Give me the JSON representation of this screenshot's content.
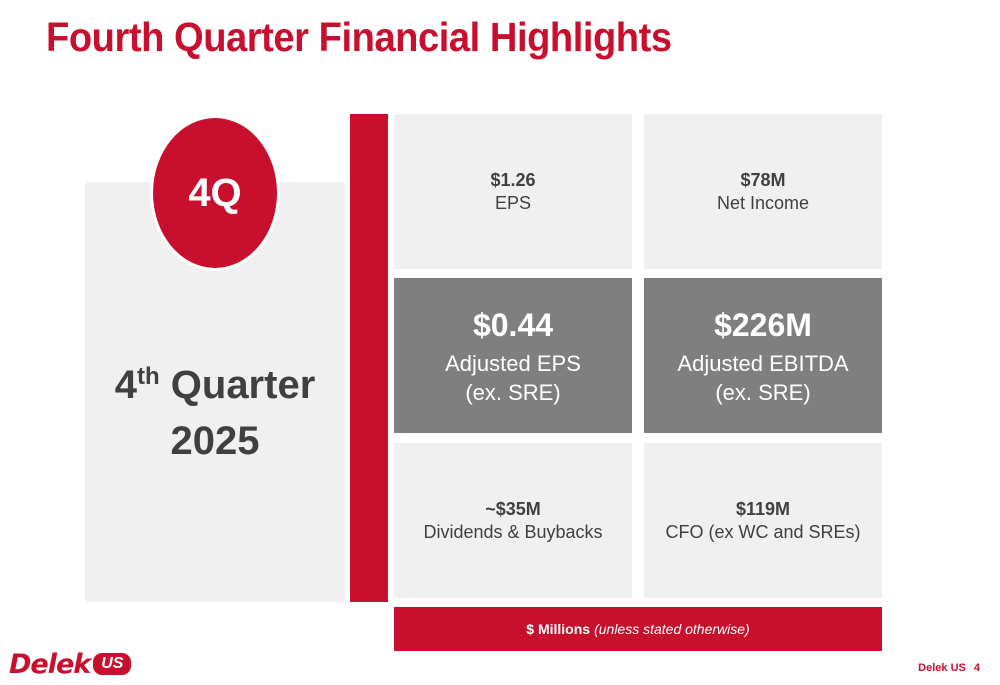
{
  "slide": {
    "title": "Fourth Quarter Financial Highlights"
  },
  "left": {
    "badge": "4Q",
    "ordinal_number": "4",
    "ordinal_suffix": "th",
    "quarter_word": "Quarter",
    "year": "2025"
  },
  "metrics": [
    {
      "value": "$1.26",
      "label": "EPS"
    },
    {
      "value": "$78M",
      "label": "Net Income"
    },
    {
      "value": "$0.44",
      "label_line1": "Adjusted EPS",
      "label_line2": "(ex. SRE)"
    },
    {
      "value": "$226M",
      "label_line1": "Adjusted EBITDA",
      "label_line2": "(ex. SRE)"
    },
    {
      "value": "~$35M",
      "label": "Dividends & Buybacks"
    },
    {
      "value": "$119M",
      "label": "CFO (ex WC and SREs)"
    }
  ],
  "footer_bar": {
    "bold_text": "$ Millions",
    "italic_text": "(unless stated otherwise)"
  },
  "logo": {
    "word": "Delek",
    "badge": "US"
  },
  "footer": {
    "company": "Delek US",
    "page_number": "4"
  },
  "colors": {
    "accent": "#c8102e",
    "light_tile": "#f0f0f0",
    "dark_tile": "#7f7f7f",
    "text": "#404040"
  }
}
